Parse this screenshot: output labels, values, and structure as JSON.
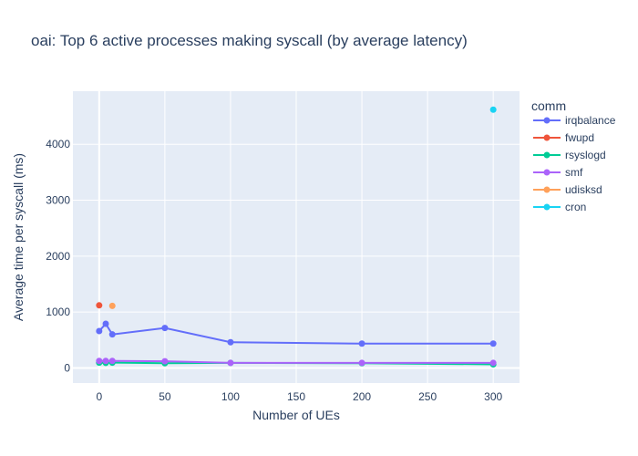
{
  "chart_data": {
    "type": "line",
    "title": "oai: Top 6 active processes making syscall (by average latency)",
    "xlabel": "Number of UEs",
    "ylabel": "Average time per syscall (ms)",
    "xlim": [
      -20,
      320
    ],
    "ylim": [
      -270,
      4950
    ],
    "xticks": [
      0,
      50,
      100,
      150,
      200,
      250,
      300
    ],
    "yticks": [
      0,
      1000,
      2000,
      3000,
      4000
    ],
    "ytick_labels": [
      "0",
      "1000",
      "2000",
      "3000",
      "4000"
    ],
    "grid": true,
    "legend_title": "comm",
    "legend_position": "right",
    "series": [
      {
        "name": "irqbalance",
        "color": "#636efa",
        "x": [
          0,
          5,
          10,
          50,
          100,
          200,
          300
        ],
        "y": [
          660,
          790,
          600,
          715,
          460,
          435,
          435
        ]
      },
      {
        "name": "fwupd",
        "color": "#EF553B",
        "x": [
          0
        ],
        "y": [
          1120
        ]
      },
      {
        "name": "rsyslogd",
        "color": "#00cc96",
        "x": [
          0,
          5,
          10,
          50,
          100,
          200,
          300
        ],
        "y": [
          95,
          90,
          95,
          85,
          90,
          85,
          65
        ]
      },
      {
        "name": "smf",
        "color": "#ab63fa",
        "x": [
          0,
          5,
          10,
          50,
          100,
          200,
          300
        ],
        "y": [
          125,
          125,
          125,
          120,
          90,
          90,
          90
        ]
      },
      {
        "name": "udisksd",
        "color": "#FFA15A",
        "x": [
          10
        ],
        "y": [
          1110
        ]
      },
      {
        "name": "cron",
        "color": "#19d3f3",
        "x": [
          300
        ],
        "y": [
          4620
        ]
      }
    ]
  }
}
